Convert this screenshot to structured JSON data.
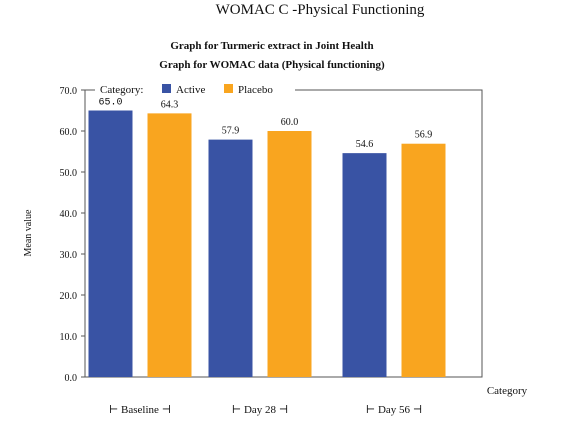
{
  "page_title": "WOMAC C -Physical Functioning",
  "chart_data": {
    "type": "bar",
    "title": "Graph for Turmeric extract in Joint Health",
    "subtitle": "Graph for WOMAC data (Physical functioning)",
    "xlabel": "Category",
    "ylabel": "Mean value",
    "ylim": [
      0,
      70
    ],
    "yticks": [
      "0.0",
      "10.0",
      "20.0",
      "30.0",
      "40.0",
      "50.0",
      "60.0",
      "70.0"
    ],
    "categories": [
      "Baseline",
      "Day 28",
      "Day 56"
    ],
    "legend_title": "Category:",
    "legend_position": "top-left",
    "grid": false,
    "series": [
      {
        "name": "Active",
        "color": "#3953a4",
        "values": [
          65.0,
          57.9,
          54.6
        ],
        "labels": [
          "65.0",
          "57.9",
          "54.6"
        ]
      },
      {
        "name": "Placebo",
        "color": "#f9a51f",
        "values": [
          64.3,
          60.0,
          56.9
        ],
        "labels": [
          "64.3",
          "60.0",
          "56.9"
        ]
      }
    ]
  }
}
